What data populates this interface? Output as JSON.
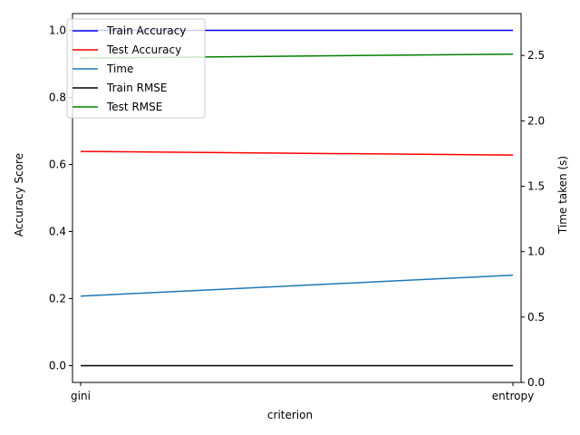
{
  "chart_data": {
    "type": "line",
    "categories": [
      "gini",
      "entropy"
    ],
    "xlabel": "criterion",
    "ylabel_left": "Accuracy Score",
    "ylabel_right": "Time taken (s)",
    "ylim_left": [
      -0.05,
      1.05
    ],
    "ylim_right": [
      0,
      2.82
    ],
    "yticks_left": [
      0.0,
      0.2,
      0.4,
      0.6,
      0.8,
      1.0
    ],
    "yticks_right": [
      0.0,
      0.5,
      1.0,
      1.5,
      2.0,
      2.5
    ],
    "grid": false,
    "legend_position": "upper-left",
    "series": [
      {
        "name": "Train Accuracy",
        "axis": "left",
        "color": "#0000ff",
        "values": [
          1.0,
          1.0
        ]
      },
      {
        "name": "Test Accuracy",
        "axis": "left",
        "color": "#ff0000",
        "values": [
          0.639,
          0.628
        ]
      },
      {
        "name": "Time",
        "axis": "right",
        "color": "#1f77b4",
        "values": [
          0.66,
          0.82
        ]
      },
      {
        "name": "Train RMSE",
        "axis": "left",
        "color": "#000000",
        "values": [
          0.0,
          0.0
        ]
      },
      {
        "name": "Test RMSE",
        "axis": "right",
        "color": "#008000",
        "values": [
          2.48,
          2.51
        ]
      }
    ]
  }
}
